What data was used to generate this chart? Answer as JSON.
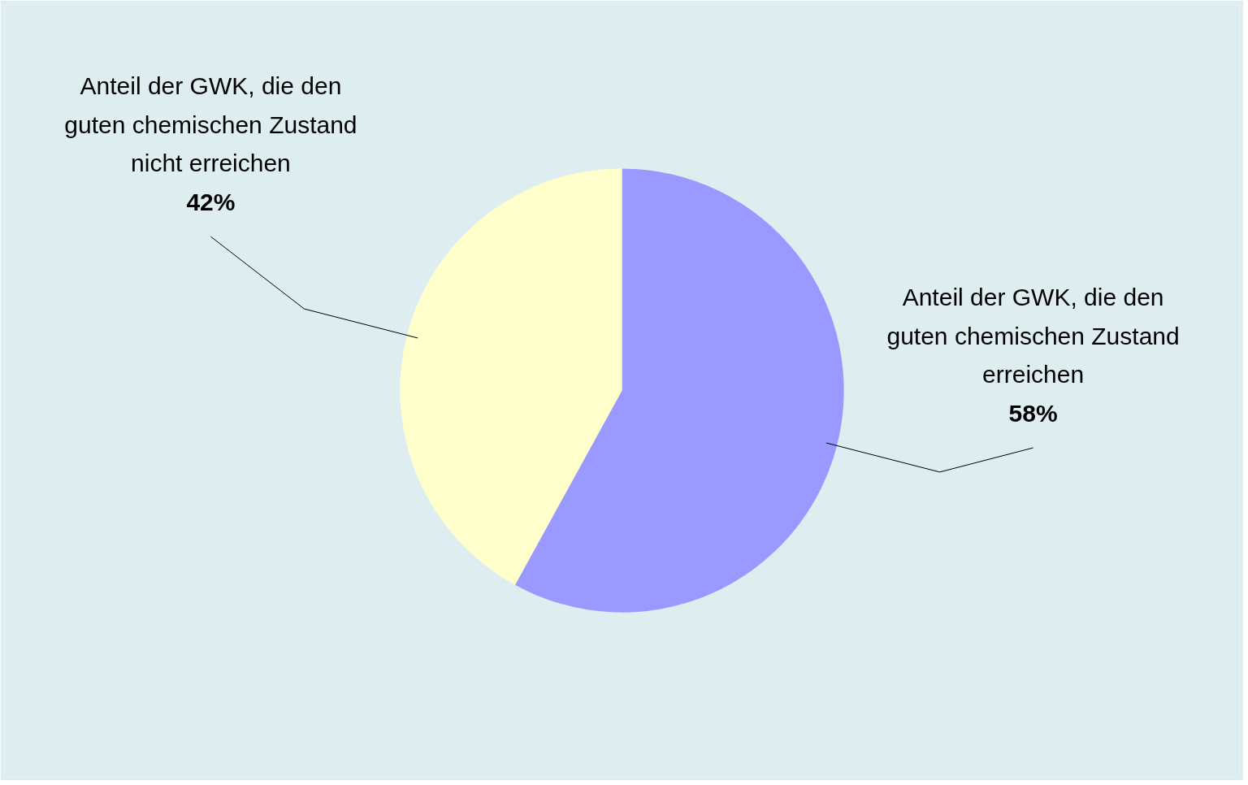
{
  "chart_data": {
    "type": "pie",
    "categories": [
      "Anteil der GWK, die den guten chemischen Zustand erreichen",
      "Anteil der GWK, die den guten chemischen Zustand nicht erreichen"
    ],
    "values": [
      58,
      42
    ],
    "colors": [
      "#9999ff",
      "#ffffcc"
    ],
    "value_labels": [
      "58%",
      "42%"
    ]
  }
}
